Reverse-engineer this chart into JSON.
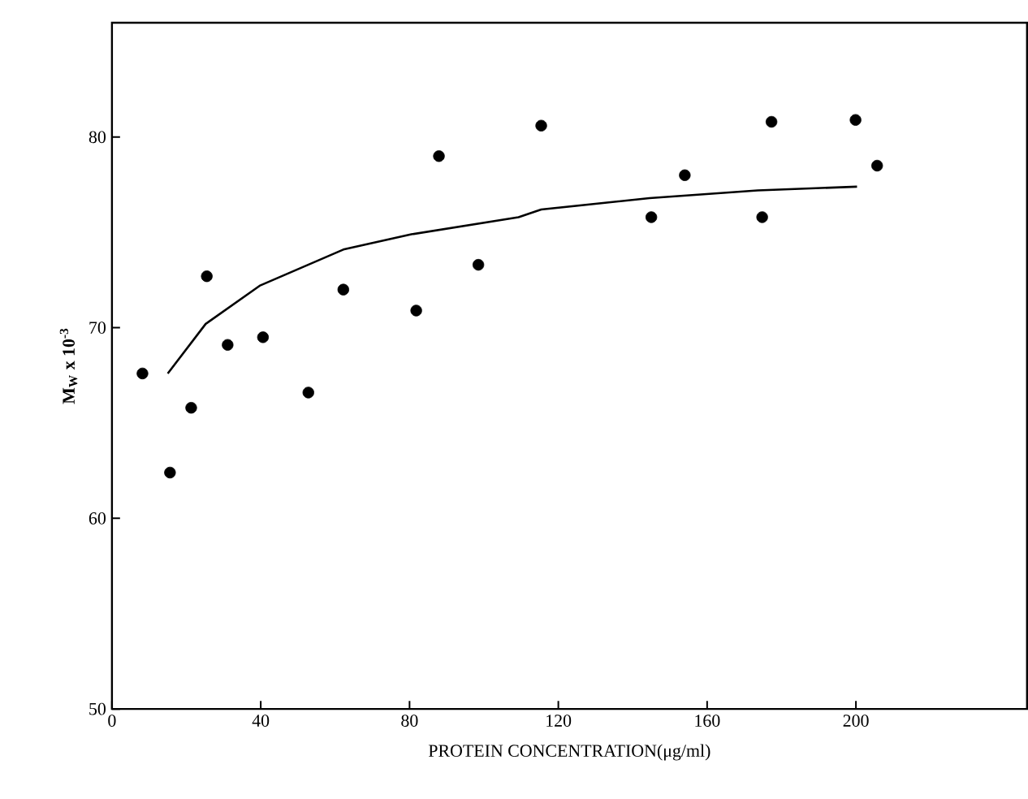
{
  "chart_data": {
    "type": "scatter",
    "xlabel": "PROTEIN CONCENTRATION(μg/ml)",
    "ylabel": "M$_{W}$ x 10$^{-3}$",
    "xlim": [
      0,
      246
    ],
    "ylim": [
      50,
      86
    ],
    "xticks": [
      0,
      40,
      80,
      120,
      160,
      200
    ],
    "yticks": [
      50,
      60,
      70,
      80
    ],
    "series": [
      {
        "marker": "circle",
        "color": "#000000",
        "x": [
          8.2,
          15.6,
          21.3,
          25.5,
          31.1,
          40.6,
          52.8,
          62.2,
          81.8,
          87.9,
          98.5,
          115.4,
          145.0,
          154.0,
          174.8,
          177.3,
          199.9,
          205.7
        ],
        "values": [
          67.6,
          62.4,
          65.8,
          72.7,
          69.1,
          69.5,
          66.6,
          72.0,
          70.9,
          79.0,
          73.3,
          80.6,
          75.8,
          78.0,
          75.8,
          80.8,
          80.9,
          78.5
        ]
      },
      {
        "type": "line",
        "marker": "none",
        "line_style": "solid",
        "color": "#000000",
        "x": [
          15.0,
          25.2,
          39.7,
          62.2,
          80.5,
          109.3,
          115.4,
          144.5,
          173.6,
          200.3
        ],
        "values": [
          67.6,
          70.2,
          72.2,
          74.1,
          74.9,
          75.8,
          76.2,
          76.8,
          77.2,
          77.4
        ]
      }
    ]
  }
}
